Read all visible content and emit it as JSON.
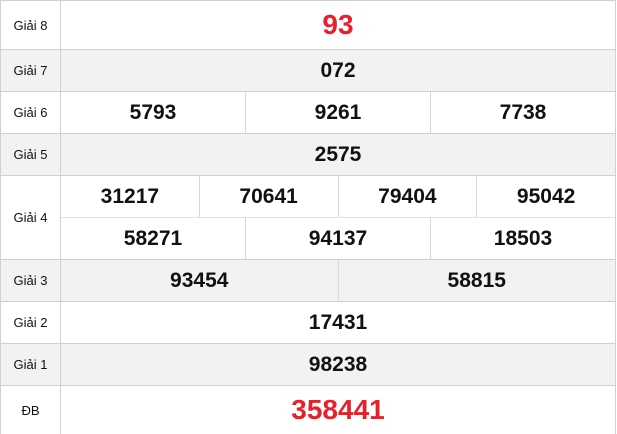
{
  "colors": {
    "special": "#e8202a",
    "row_alt": "#f2f2f2",
    "border": "#d0d0d0"
  },
  "prizes": [
    {
      "label": "Giải 8",
      "numbers": [
        "93"
      ]
    },
    {
      "label": "Giải 7",
      "numbers": [
        "072"
      ]
    },
    {
      "label": "Giải 6",
      "numbers": [
        "5793",
        "9261",
        "7738"
      ]
    },
    {
      "label": "Giải 5",
      "numbers": [
        "2575"
      ]
    },
    {
      "label": "Giải 4",
      "numbers": [
        "31217",
        "70641",
        "79404",
        "95042",
        "58271",
        "94137",
        "18503"
      ]
    },
    {
      "label": "Giải 3",
      "numbers": [
        "93454",
        "58815"
      ]
    },
    {
      "label": "Giải 2",
      "numbers": [
        "17431"
      ]
    },
    {
      "label": "Giải 1",
      "numbers": [
        "98238"
      ]
    },
    {
      "label": "ĐB",
      "numbers": [
        "358441"
      ]
    }
  ]
}
